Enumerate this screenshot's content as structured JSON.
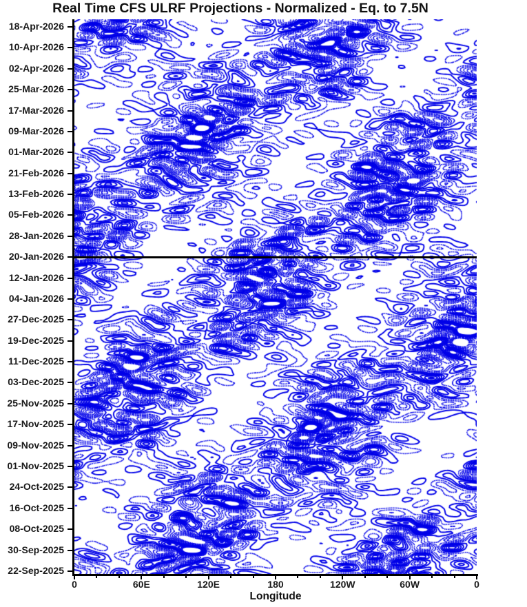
{
  "title": "Real Time CFS ULRF Projections - Normalized - Eq. to 7.5N",
  "colors": {
    "contour": "#0000e8",
    "axis": "#000000",
    "divider": "#000000",
    "text": "#111111",
    "background": "#ffffff"
  },
  "chart_data": {
    "type": "heatmap",
    "subtype": "hovmoller-contour",
    "title": "Real Time CFS ULRF Projections - Normalized - Eq. to 7.5N",
    "xlabel": "Longitude",
    "x_ticks": [
      "0",
      "60E",
      "120E",
      "180",
      "120W",
      "60W",
      "0"
    ],
    "x_range_degrees": [
      0,
      360
    ],
    "y_ticks_top_to_bottom": [
      "18-Apr-2026",
      "10-Apr-2026",
      "02-Apr-2026",
      "25-Mar-2026",
      "17-Mar-2026",
      "09-Mar-2026",
      "01-Mar-2026",
      "21-Feb-2026",
      "13-Feb-2026",
      "05-Feb-2026",
      "28-Jan-2026",
      "20-Jan-2026",
      "12-Jan-2026",
      "04-Jan-2026",
      "27-Dec-2025",
      "19-Dec-2025",
      "11-Dec-2025",
      "03-Dec-2025",
      "25-Nov-2025",
      "17-Nov-2025",
      "09-Nov-2025",
      "01-Nov-2025",
      "24-Oct-2025",
      "16-Oct-2025",
      "08-Oct-2025",
      "30-Sep-2025",
      "22-Sep-2025"
    ],
    "y_tick_interval_days": 8,
    "forecast_divider_date": "20-Jan-2026",
    "forecast_divider_tick_index": 11,
    "contour_style": {
      "positive": "solid",
      "negative": "dotted",
      "color": "#0000e8",
      "note": "solid blue contours = positive normalized anomalies, dotted blue = negative; black horizontal line marks forecast start"
    },
    "levels": {
      "solid": [
        0.25,
        0.6,
        0.95,
        1.3,
        1.65,
        2.0,
        2.35
      ],
      "dotted": [
        -0.25,
        -0.6,
        -0.95,
        -1.3,
        -1.65,
        -2.0,
        -2.35
      ]
    },
    "field": {
      "grid": [
        234,
        322
      ],
      "waves": [
        {
          "a": 0.55,
          "kx": -4,
          "ky": 18,
          "p": 0.7
        },
        {
          "a": 0.5,
          "kx": -7,
          "ky": 26,
          "p": 2.3
        },
        {
          "a": 0.45,
          "kx": -3,
          "ky": 33,
          "p": 4.1
        },
        {
          "a": 0.45,
          "kx": -9,
          "ky": 14,
          "p": 1.5
        },
        {
          "a": 0.4,
          "kx": -6,
          "ky": 40,
          "p": 5.2
        },
        {
          "a": 0.4,
          "kx": -11,
          "ky": 22,
          "p": 3.0
        },
        {
          "a": 0.4,
          "kx": 5,
          "ky": 29,
          "p": 0.2
        },
        {
          "a": 0.35,
          "kx": 8,
          "ky": 37,
          "p": 2.9
        },
        {
          "a": 0.35,
          "kx": 3,
          "ky": 12,
          "p": 4.6
        },
        {
          "a": 0.3,
          "kx": 10,
          "ky": 45,
          "p": 1.1
        },
        {
          "a": 0.3,
          "kx": -14,
          "ky": 9,
          "p": 5.8
        },
        {
          "a": 0.3,
          "kx": 6,
          "ky": 21,
          "p": 3.7
        },
        {
          "a": 0.3,
          "kx": -2,
          "ky": 25,
          "p": 0.9
        },
        {
          "a": 0.25,
          "kx": 12,
          "ky": 31,
          "p": 2.0
        }
      ],
      "envelopes": [
        {
          "base": 0.72,
          "kx": 1.6,
          "ky": 2.8,
          "p": 1.0,
          "amp": 0.5
        },
        {
          "base": 0.85,
          "kx": -2.3,
          "ky": 1.4,
          "p": 4.2,
          "amp": 0.33
        }
      ]
    }
  }
}
